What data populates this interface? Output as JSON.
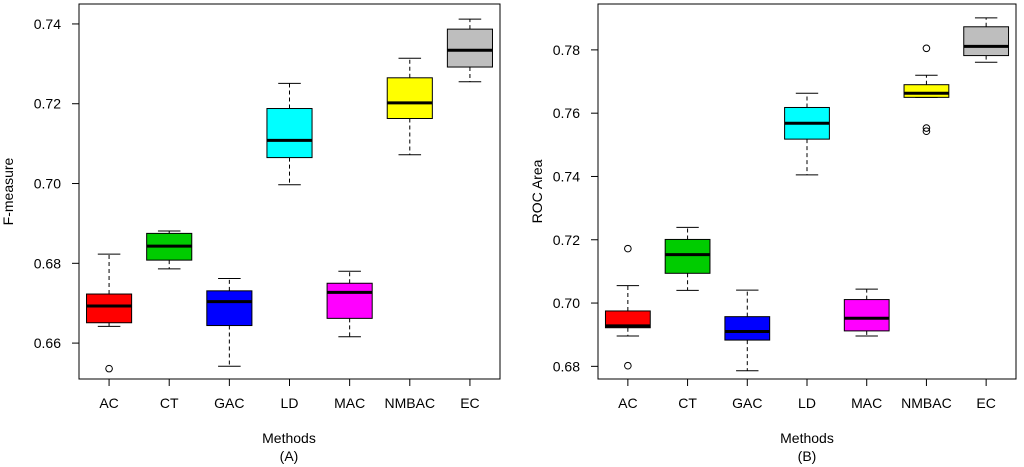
{
  "chart_data": [
    {
      "type": "box",
      "panel_label": "(A)",
      "xlabel": "Methods",
      "ylabel": "F-measure",
      "ylim": [
        0.651,
        0.745
      ],
      "yticks": [
        0.66,
        0.68,
        0.7,
        0.72,
        0.74
      ],
      "ytick_labels": [
        "0.66",
        "0.68",
        "0.70",
        "0.72",
        "0.74"
      ],
      "categories": [
        "AC",
        "CT",
        "GAC",
        "LD",
        "MAC",
        "NMBAC",
        "EC"
      ],
      "colors": [
        "#ff0000",
        "#00cc00",
        "#0000ff",
        "#00ffff",
        "#ff00ff",
        "#ffff00",
        "#bebebe"
      ],
      "boxes": [
        {
          "min": 0.6642,
          "q1": 0.6651,
          "median": 0.6693,
          "q3": 0.6723,
          "max": 0.6823,
          "outliers": [
            0.6536
          ]
        },
        {
          "min": 0.6786,
          "q1": 0.6808,
          "median": 0.6843,
          "q3": 0.6875,
          "max": 0.6881,
          "outliers": []
        },
        {
          "min": 0.6542,
          "q1": 0.6644,
          "median": 0.6704,
          "q3": 0.6731,
          "max": 0.6762,
          "outliers": []
        },
        {
          "min": 0.6997,
          "q1": 0.7065,
          "median": 0.7108,
          "q3": 0.7188,
          "max": 0.7251,
          "outliers": []
        },
        {
          "min": 0.6616,
          "q1": 0.6662,
          "median": 0.6727,
          "q3": 0.675,
          "max": 0.678,
          "outliers": []
        },
        {
          "min": 0.7072,
          "q1": 0.7163,
          "median": 0.7202,
          "q3": 0.7265,
          "max": 0.7314,
          "outliers": []
        },
        {
          "min": 0.7255,
          "q1": 0.7292,
          "median": 0.7334,
          "q3": 0.7387,
          "max": 0.7412,
          "outliers": []
        }
      ]
    },
    {
      "type": "box",
      "panel_label": "(B)",
      "xlabel": "Methods",
      "ylabel": "ROC Area",
      "ylim": [
        0.676,
        0.7945
      ],
      "yticks": [
        0.68,
        0.7,
        0.72,
        0.74,
        0.76,
        0.78
      ],
      "ytick_labels": [
        "0.68",
        "0.70",
        "0.72",
        "0.74",
        "0.76",
        "0.78"
      ],
      "categories": [
        "AC",
        "CT",
        "GAC",
        "LD",
        "MAC",
        "NMBAC",
        "EC"
      ],
      "colors": [
        "#ff0000",
        "#00cc00",
        "#0000ff",
        "#00ffff",
        "#ff00ff",
        "#ffff00",
        "#bebebe"
      ],
      "boxes": [
        {
          "min": 0.6896,
          "q1": 0.6922,
          "median": 0.6928,
          "q3": 0.6975,
          "max": 0.7055,
          "outliers": [
            0.7172,
            0.6802
          ]
        },
        {
          "min": 0.704,
          "q1": 0.7094,
          "median": 0.7153,
          "q3": 0.7201,
          "max": 0.7239,
          "outliers": []
        },
        {
          "min": 0.6786,
          "q1": 0.6883,
          "median": 0.691,
          "q3": 0.6957,
          "max": 0.7041,
          "outliers": []
        },
        {
          "min": 0.7405,
          "q1": 0.7518,
          "median": 0.7568,
          "q3": 0.7618,
          "max": 0.7663,
          "outliers": []
        },
        {
          "min": 0.6896,
          "q1": 0.6912,
          "median": 0.6952,
          "q3": 0.7011,
          "max": 0.7044,
          "outliers": []
        },
        {
          "min": 0.765,
          "q1": 0.765,
          "median": 0.7663,
          "q3": 0.769,
          "max": 0.772,
          "outliers": [
            0.7805,
            0.7553,
            0.7543
          ]
        },
        {
          "min": 0.7761,
          "q1": 0.7782,
          "median": 0.7811,
          "q3": 0.7873,
          "max": 0.7901,
          "outliers": []
        }
      ]
    }
  ]
}
